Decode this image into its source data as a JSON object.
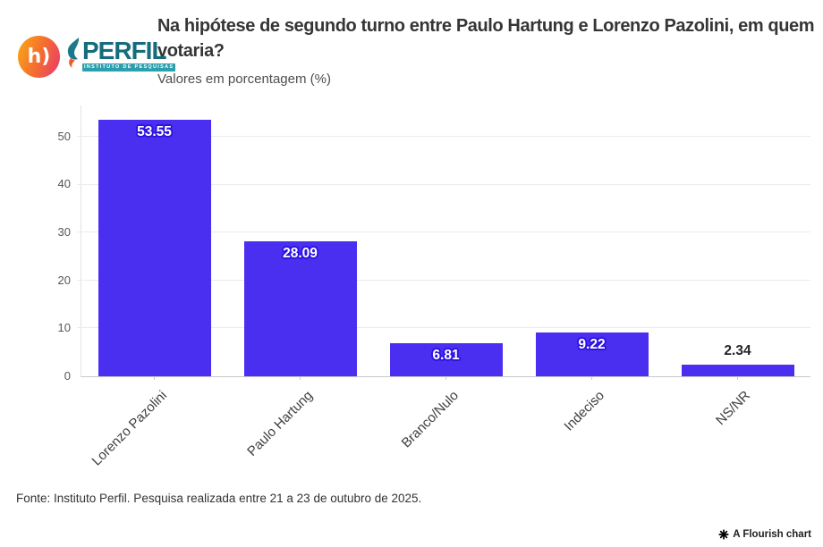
{
  "header": {
    "title": "Na hipótese de segundo turno entre Paulo Hartung e Lorenzo Pazolini, em quem votaria?",
    "subtitle": "Valores em porcentagem (%)"
  },
  "logos": {
    "hoje": {
      "text": "h)"
    },
    "perfil": {
      "name": "PERFIL",
      "tagline": "INSTITUTO DE PESQUISAS"
    }
  },
  "chart_data": {
    "type": "bar",
    "title": "Na hipótese de segundo turno entre Paulo Hartung e Lorenzo Pazolini, em quem votaria?",
    "subtitle": "Valores em porcentagem (%)",
    "categories": [
      "Lorenzo Pazolini",
      "Paulo Hartung",
      "Branco/Nulo",
      "Indeciso",
      "NS/NR"
    ],
    "values": [
      53.55,
      28.09,
      6.81,
      9.22,
      2.34
    ],
    "value_labels": [
      "53.55",
      "28.09",
      "6.81",
      "9.22",
      "2.34"
    ],
    "xlabel": "",
    "ylabel": "",
    "y_ticks": [
      0,
      10,
      20,
      30,
      40,
      50
    ],
    "ylim": [
      0,
      56.5
    ],
    "grid": true,
    "legend": "none",
    "bar_color": "#4B2FF0",
    "label_inside_color": "#FFFFFF",
    "label_outline_color": "#2E13E2",
    "label_outside_color": "#262626"
  },
  "footer": {
    "source": "Fonte: Instituto Perfil. Pesquisa realizada entre 21 a 23 de outubro de 2025."
  },
  "credit": {
    "label": "A Flourish chart"
  }
}
